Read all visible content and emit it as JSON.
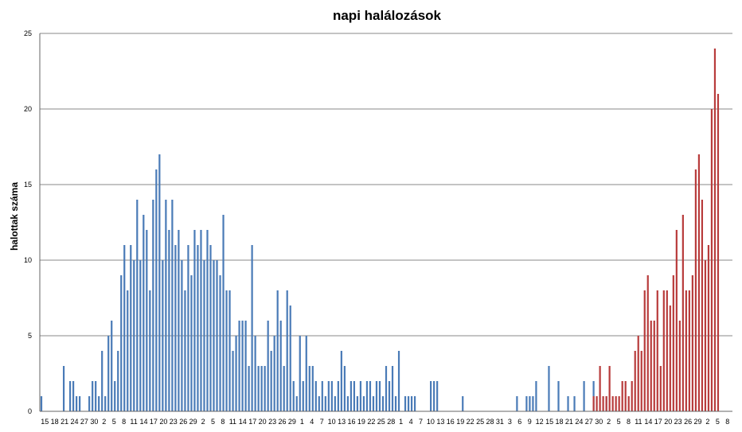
{
  "chart_data": {
    "type": "bar",
    "title": "napi halálozások",
    "ylabel": "halottak száma",
    "xlabel": "",
    "ylim": [
      0,
      25
    ],
    "yticks": [
      0,
      5,
      10,
      15,
      20,
      25
    ],
    "grid": true,
    "xtick_labels": [
      "15",
      "18",
      "21",
      "24",
      "27",
      "30",
      "2",
      "5",
      "8",
      "11",
      "14",
      "17",
      "20",
      "23",
      "26",
      "29",
      "2",
      "5",
      "8",
      "11",
      "14",
      "17",
      "20",
      "23",
      "26",
      "29",
      "1",
      "4",
      "7",
      "10",
      "13",
      "16",
      "19",
      "22",
      "25",
      "28",
      "1",
      "4",
      "7",
      "10",
      "13",
      "16",
      "19",
      "22",
      "25",
      "28",
      "31",
      "3",
      "6",
      "9",
      "12",
      "15",
      "18",
      "21",
      "24",
      "27",
      "30",
      "2",
      "5",
      "8",
      "11",
      "14",
      "17",
      "20",
      "23",
      "26",
      "29",
      "2",
      "5",
      "8"
    ],
    "series": [
      {
        "color": "#4a7bb7",
        "values": [
          1,
          0,
          0,
          0,
          0,
          0,
          0,
          3,
          0,
          2,
          2,
          1,
          1,
          0,
          0,
          1,
          2,
          2,
          1,
          4,
          1,
          5,
          6,
          2,
          4,
          9,
          11,
          8,
          11,
          10,
          14,
          10,
          13,
          12,
          8,
          14,
          16,
          17,
          10,
          14,
          12,
          14,
          11,
          12,
          10,
          8,
          11,
          9,
          12,
          11,
          12,
          10,
          12,
          11,
          10,
          10,
          9,
          13,
          8,
          8,
          4,
          5,
          6,
          6,
          6,
          3,
          11,
          5,
          3,
          3,
          3,
          6,
          4,
          5,
          8,
          6,
          3,
          8,
          7,
          2,
          1,
          5,
          2,
          5,
          3,
          3,
          2,
          1,
          2,
          1,
          2,
          2,
          1,
          2,
          4,
          3,
          1,
          2,
          2,
          1,
          2,
          1,
          2,
          2,
          1,
          2,
          2,
          1,
          3,
          2,
          3,
          1,
          4,
          0,
          1,
          1,
          1,
          1,
          0,
          0,
          0,
          0,
          2,
          2,
          2,
          0,
          0,
          0,
          0,
          0,
          0,
          0,
          1,
          0,
          0,
          0,
          0,
          0,
          0,
          0,
          0,
          0,
          0,
          0,
          0,
          0,
          0,
          0,
          0,
          1,
          0,
          0,
          1,
          1,
          1,
          2,
          0,
          0,
          0,
          3,
          0,
          0,
          2,
          0,
          0,
          1,
          0,
          1,
          0,
          0,
          2,
          0,
          0,
          2,
          0,
          0,
          0,
          1,
          0,
          0,
          0,
          0,
          0,
          0,
          0,
          0,
          0,
          0,
          0,
          0,
          0,
          0,
          0,
          0,
          0,
          0,
          0,
          0,
          0,
          0,
          0,
          0,
          0,
          0,
          0,
          0,
          0,
          0,
          0,
          0,
          0,
          0,
          0,
          0,
          0,
          0,
          0
        ]
      },
      {
        "color": "#b83c3c",
        "values": [
          0,
          0,
          0,
          0,
          0,
          0,
          0,
          0,
          0,
          0,
          0,
          0,
          0,
          0,
          0,
          0,
          0,
          0,
          0,
          0,
          0,
          0,
          0,
          0,
          0,
          0,
          0,
          0,
          0,
          0,
          0,
          0,
          0,
          0,
          0,
          0,
          0,
          0,
          0,
          0,
          0,
          0,
          0,
          0,
          0,
          0,
          0,
          0,
          0,
          0,
          0,
          0,
          0,
          0,
          0,
          0,
          0,
          0,
          0,
          0,
          0,
          0,
          0,
          0,
          0,
          0,
          0,
          0,
          0,
          0,
          0,
          0,
          0,
          0,
          0,
          0,
          0,
          0,
          0,
          0,
          0,
          0,
          0,
          0,
          0,
          0,
          0,
          0,
          0,
          0,
          0,
          0,
          0,
          0,
          0,
          0,
          0,
          0,
          0,
          0,
          0,
          0,
          0,
          0,
          0,
          0,
          0,
          0,
          0,
          0,
          0,
          0,
          0,
          0,
          0,
          0,
          0,
          0,
          0,
          0,
          0,
          0,
          0,
          0,
          0,
          0,
          0,
          0,
          0,
          0,
          0,
          0,
          0,
          0,
          0,
          0,
          0,
          0,
          0,
          0,
          0,
          0,
          0,
          0,
          0,
          0,
          0,
          0,
          0,
          0,
          0,
          0,
          0,
          0,
          0,
          0,
          0,
          0,
          0,
          0,
          0,
          0,
          0,
          0,
          0,
          0,
          0,
          0,
          0,
          0,
          0,
          0,
          0,
          1,
          1,
          3,
          1,
          1,
          3,
          1,
          1,
          1,
          2,
          2,
          1,
          2,
          4,
          5,
          4,
          8,
          9,
          6,
          6,
          8,
          3,
          8,
          8,
          7,
          9,
          12,
          6,
          13,
          8,
          8,
          9,
          16,
          17,
          14,
          10,
          11,
          20,
          24,
          21
        ]
      }
    ]
  }
}
